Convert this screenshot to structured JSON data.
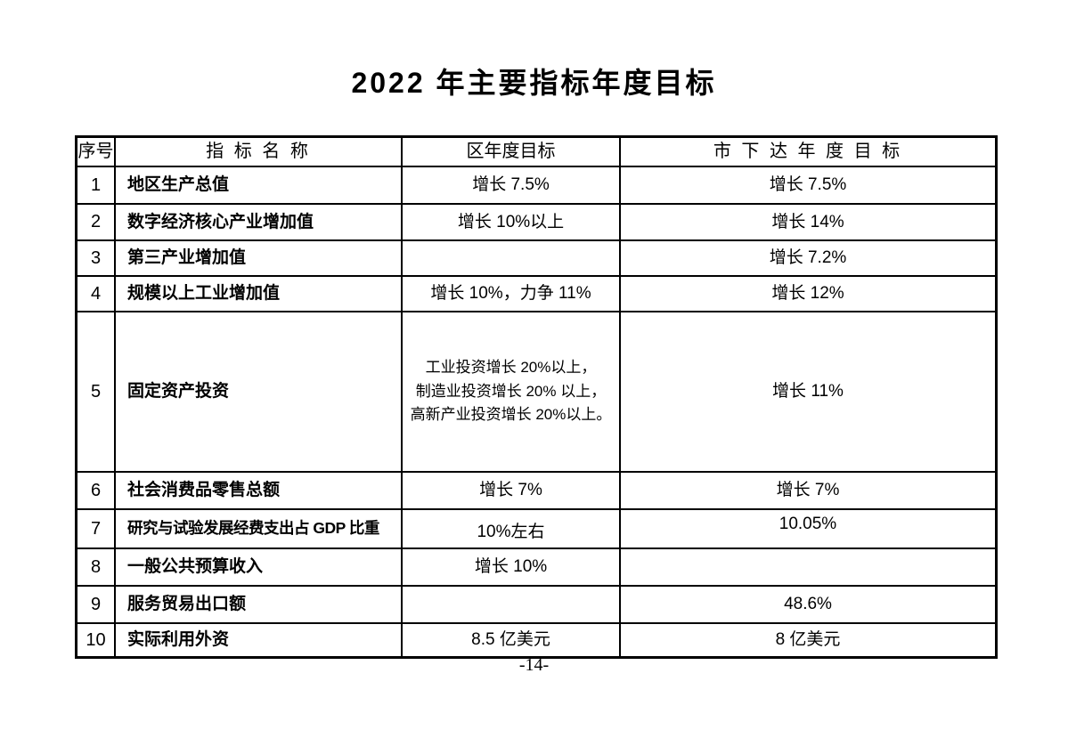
{
  "colors": {
    "text": "#000000",
    "border": "#000000",
    "page_background": "#ffffff"
  },
  "page": {
    "title": "2022 年主要指标年度目标",
    "page_number": "-14-"
  },
  "table": {
    "headers": [
      "序号",
      "指 标 名 称",
      "区年度目标",
      "市 下 达 年 度 目 标"
    ],
    "rows": [
      {
        "no": "1",
        "name": "地区生产总值",
        "district_target": "增长 7.5%",
        "city_target": "增长 7.5%"
      },
      {
        "no": "2",
        "name": "数字经济核心产业增加值",
        "district_target": "增长 10%以上",
        "city_target": "增长 14%"
      },
      {
        "no": "3",
        "name": "第三产业增加值",
        "district_target": "",
        "city_target": "增长 7.2%"
      },
      {
        "no": "4",
        "name": "规模以上工业增加值",
        "district_target": "增长 10%，力争 11%",
        "city_target": "增长 12%"
      },
      {
        "no": "5",
        "name": "固定资产投资",
        "district_target": "工业投资增长 20%以上，\n制造业投资增长 20% 以上，\n高新产业投资增长 20%以上。",
        "city_target": "增长 11%"
      },
      {
        "no": "6",
        "name": "社会消费品零售总额",
        "district_target": "增长 7%",
        "city_target": "增长 7%"
      },
      {
        "no": "7",
        "name": "研究与试验发展经费支出占 GDP 比重",
        "district_target": "10%左右",
        "city_target": "10.05%"
      },
      {
        "no": "8",
        "name": "一般公共预算收入",
        "district_target": "增长 10%",
        "city_target": ""
      },
      {
        "no": "9",
        "name": "服务贸易出口额",
        "district_target": "",
        "city_target": "48.6%"
      },
      {
        "no": "10",
        "name": "实际利用外资",
        "district_target": "8.5 亿美元",
        "city_target": "8 亿美元"
      }
    ]
  }
}
